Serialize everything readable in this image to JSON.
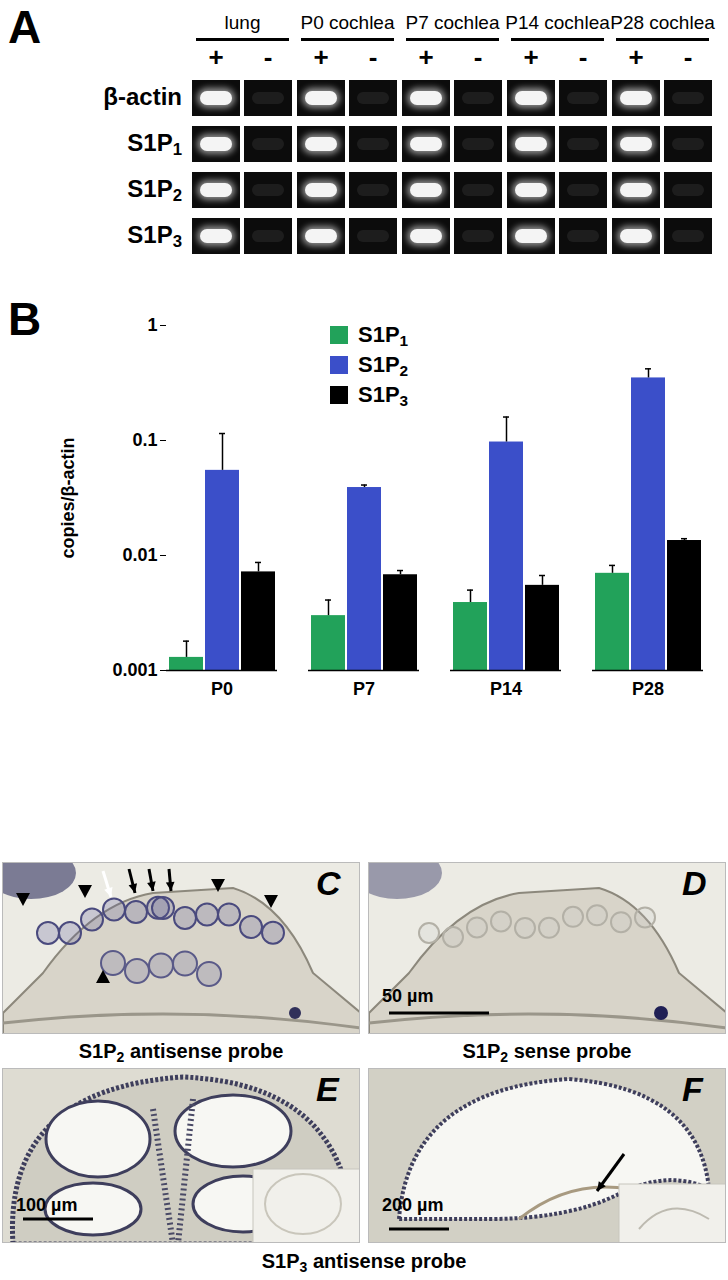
{
  "panel_a": {
    "label": "A",
    "samples": [
      "lung",
      "P0 cochlea",
      "P7 cochlea",
      "P14 cochlea",
      "P28 cochlea"
    ],
    "lanes": [
      "+",
      "-"
    ],
    "genes": [
      "β-actin",
      "S1P1",
      "S1P2",
      "S1P3"
    ]
  },
  "chart_data": {
    "panel": "B",
    "type": "bar",
    "categories": [
      "P0",
      "P7",
      "P14",
      "P28"
    ],
    "series": [
      {
        "name": "S1P1",
        "color": "#22a25a",
        "values": [
          0.0013,
          0.003,
          0.0039,
          0.007
        ],
        "errors": [
          0.0005,
          0.0011,
          0.0011,
          0.0012
        ]
      },
      {
        "name": "S1P2",
        "color": "#3b4fc9",
        "values": [
          0.055,
          0.039,
          0.097,
          0.35
        ],
        "errors": [
          0.06,
          0.002,
          0.063,
          0.07
        ]
      },
      {
        "name": "S1P3",
        "color": "#000000",
        "values": [
          0.0072,
          0.0068,
          0.0055,
          0.0135
        ],
        "errors": [
          0.0015,
          0.0006,
          0.0012,
          0.0005
        ]
      }
    ],
    "ylabel": "copies/β-actin",
    "log": "y",
    "ylim": [
      0.001,
      1
    ],
    "yticks": [
      0.001,
      0.01,
      0.1,
      1
    ],
    "legend": "top"
  },
  "micrographs": [
    {
      "label": "C",
      "caption": "S1P2 antisense probe"
    },
    {
      "label": "D",
      "caption": "S1P2 sense probe",
      "scale_bar": "50 µm"
    },
    {
      "label": "E",
      "scale_bar": "100 µm"
    },
    {
      "label": "F",
      "scale_bar": "200 µm"
    }
  ],
  "shared_caption": "S1P3 antisense probe"
}
